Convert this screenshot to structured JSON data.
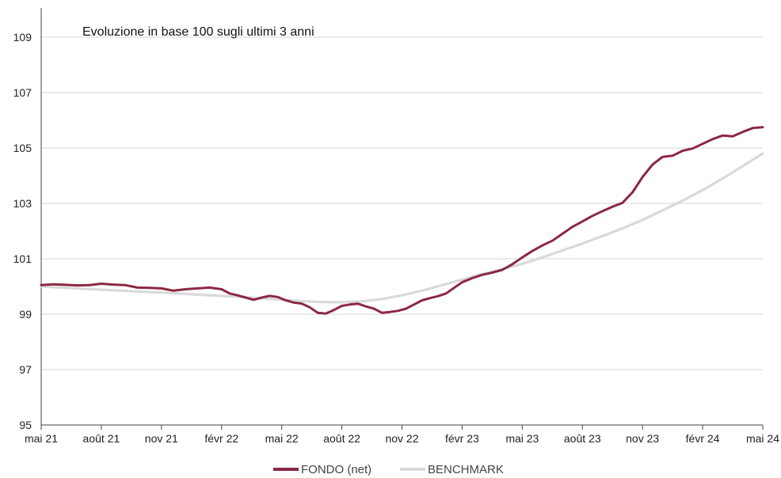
{
  "chart_data": {
    "type": "line",
    "title": "Evoluzione in base 100 sugli ultimi 3 anni",
    "xlabel": "",
    "ylabel": "",
    "ylim": [
      95,
      109
    ],
    "yticks": [
      95,
      97,
      99,
      101,
      103,
      105,
      107,
      109
    ],
    "x_tick_labels": [
      "mai 21",
      "août 21",
      "nov 21",
      "févr 22",
      "mai 22",
      "août 22",
      "nov 22",
      "févr 23",
      "mai 23",
      "août 23",
      "nov 23",
      "févr 24",
      "mai 24"
    ],
    "grid": "horizontal",
    "legend_position": "bottom",
    "x_domain": [
      0,
      36
    ],
    "series": [
      {
        "name": "FONDO (net)",
        "color": "#8b2942",
        "x": [
          0,
          0.6,
          1.2,
          1.8,
          2.4,
          3.0,
          3.6,
          4.2,
          4.8,
          5.4,
          6.0,
          6.6,
          7.2,
          7.8,
          8.4,
          9.0,
          9.4,
          9.8,
          10.2,
          10.6,
          11.0,
          11.4,
          11.8,
          12.2,
          12.6,
          13.0,
          13.4,
          13.8,
          14.2,
          14.6,
          15.0,
          15.4,
          15.8,
          16.2,
          16.6,
          17.0,
          17.4,
          17.8,
          18.2,
          18.6,
          19.0,
          19.4,
          19.8,
          20.2,
          20.6,
          21.0,
          21.5,
          22.0,
          22.5,
          23.0,
          23.5,
          24.0,
          24.5,
          25.0,
          25.5,
          26.0,
          26.5,
          27.0,
          27.5,
          28.0,
          28.5,
          29.0,
          29.5,
          30.0,
          30.5,
          31.0,
          31.5,
          32.0,
          32.5,
          33.0,
          33.5,
          34.0,
          34.5,
          35.0,
          35.5,
          36.0
        ],
        "values": [
          100.05,
          100.08,
          100.06,
          100.04,
          100.05,
          100.1,
          100.07,
          100.05,
          99.96,
          99.95,
          99.93,
          99.85,
          99.9,
          99.93,
          99.96,
          99.9,
          99.75,
          99.68,
          99.6,
          99.52,
          99.6,
          99.66,
          99.62,
          99.5,
          99.42,
          99.38,
          99.25,
          99.05,
          99.02,
          99.15,
          99.3,
          99.35,
          99.38,
          99.28,
          99.2,
          99.05,
          99.08,
          99.12,
          99.2,
          99.35,
          99.5,
          99.58,
          99.65,
          99.75,
          99.95,
          100.15,
          100.3,
          100.42,
          100.5,
          100.6,
          100.8,
          101.05,
          101.28,
          101.48,
          101.65,
          101.9,
          102.15,
          102.35,
          102.55,
          102.72,
          102.88,
          103.02,
          103.4,
          103.95,
          104.4,
          104.68,
          104.72,
          104.9,
          104.98,
          105.15,
          105.32,
          105.45,
          105.42,
          105.58,
          105.72,
          105.75
        ]
      },
      {
        "name": "BENCHMARK",
        "color": "#d9d9d9",
        "x": [
          0,
          2,
          4,
          6,
          8,
          10,
          12,
          13,
          14,
          15,
          16,
          17,
          18,
          19,
          20,
          21,
          22,
          23,
          24,
          25,
          26,
          27,
          28,
          29,
          30,
          31,
          32,
          33,
          34,
          35,
          36
        ],
        "values": [
          100.0,
          99.92,
          99.85,
          99.78,
          99.7,
          99.62,
          99.52,
          99.47,
          99.44,
          99.43,
          99.46,
          99.55,
          99.68,
          99.85,
          100.05,
          100.25,
          100.45,
          100.62,
          100.82,
          101.05,
          101.3,
          101.55,
          101.82,
          102.1,
          102.4,
          102.75,
          103.1,
          103.48,
          103.9,
          104.35,
          104.8
        ]
      }
    ]
  }
}
